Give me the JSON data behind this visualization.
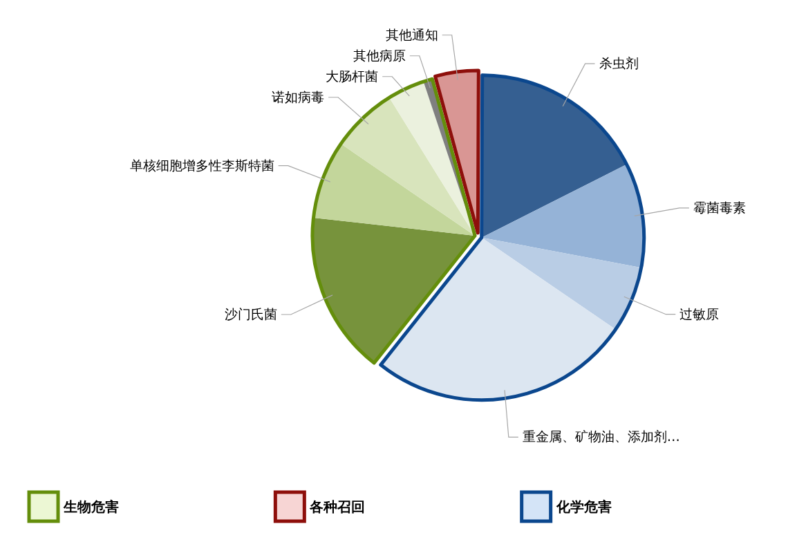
{
  "chart_data": {
    "type": "pie",
    "categories": [
      "沙门氏菌",
      "单核细胞增多性李斯特菌",
      "诺如病毒",
      "大肠杆菌",
      "其他病原",
      "其他通知",
      "杀虫剂",
      "霉菌毒素",
      "过敏原",
      "重金属、矿物油、添加剂…"
    ],
    "values": [
      16.1,
      7.8,
      6.6,
      3.7,
      0.9,
      4.3,
      17.5,
      10.4,
      6.6,
      26.1
    ],
    "colors": [
      "#77933c",
      "#c3d69b",
      "#d8e4bc",
      "#ebf1de",
      "#7f7f7f",
      "#d99694",
      "#355f91",
      "#95b3d7",
      "#b9cde5",
      "#dce6f1"
    ],
    "annotations": [
      "生物危害",
      "各种召回",
      "化学危害"
    ]
  }
}
